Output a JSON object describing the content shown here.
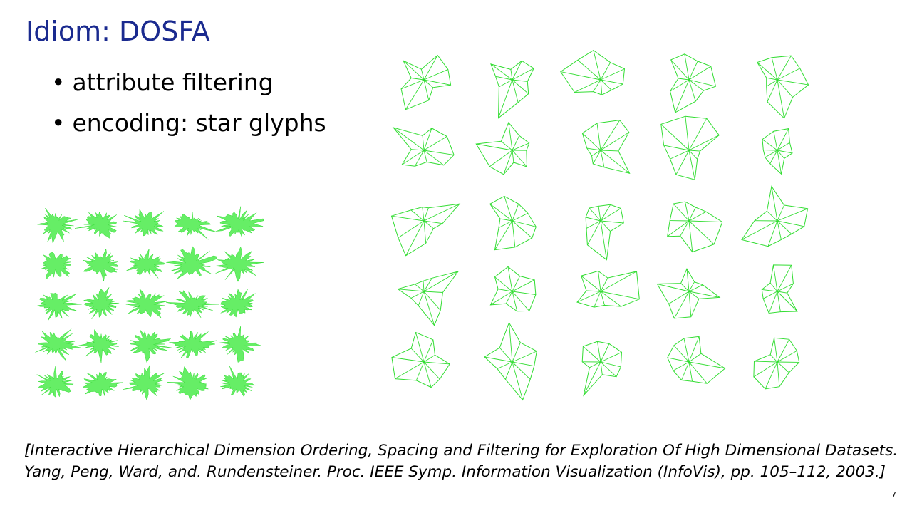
{
  "slide": {
    "title": "Idiom: DOSFA",
    "bullets": [
      "attribute filtering",
      "encoding: star glyphs"
    ],
    "citation_line1": "[Interactive Hierarchical Dimension Ordering, Spacing and Filtering for Exploration Of High Dimensional Datasets.",
    "citation_line2": "Yang, Peng, Ward, and. Rundensteiner. Proc. IEEE Symp. Information Visualization (InfoVis), pp. 105–112, 2003.]",
    "page_number": "7"
  },
  "colors": {
    "title": "#1a2a8f",
    "glyph_fill": "#66ee66",
    "glyph_stroke": "#33dd33"
  },
  "panels": {
    "dense_star_glyphs": {
      "rows": 5,
      "cols": 5,
      "style": "filled"
    },
    "filtered_star_glyphs": {
      "rows": 5,
      "cols": 5,
      "style": "outline"
    }
  }
}
